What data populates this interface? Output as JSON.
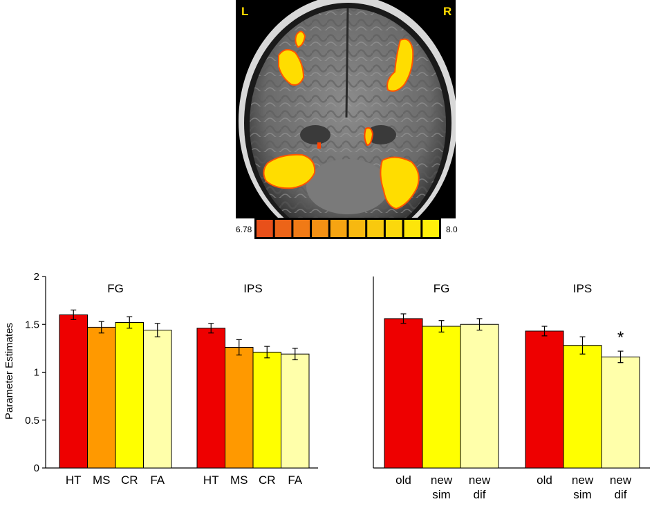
{
  "brain": {
    "left_label": "L",
    "right_label": "R",
    "colorbar": {
      "min_label": "6.78",
      "max_label": "8.0",
      "colors": [
        "#e8501a",
        "#ec6418",
        "#f07a16",
        "#f39014",
        "#f5a412",
        "#f7b810",
        "#f9c90e",
        "#fbd80c",
        "#fde50a",
        "#fff00a"
      ]
    }
  },
  "chart_data": [
    {
      "type": "bar",
      "ylabel": "Parameter Estimates",
      "ylim": [
        0,
        2
      ],
      "yticks": [
        "0",
        "0.5",
        "1",
        "1.5",
        "2"
      ],
      "groups": [
        {
          "title": "FG",
          "categories": [
            "HT",
            "MS",
            "CR",
            "FA"
          ],
          "values": [
            1.6,
            1.47,
            1.52,
            1.44
          ],
          "errors": [
            0.05,
            0.06,
            0.06,
            0.07
          ],
          "colors": [
            "#ee0000",
            "#ff9900",
            "#ffff00",
            "#ffffaa"
          ]
        },
        {
          "title": "IPS",
          "categories": [
            "HT",
            "MS",
            "CR",
            "FA"
          ],
          "values": [
            1.46,
            1.26,
            1.21,
            1.19
          ],
          "errors": [
            0.05,
            0.08,
            0.06,
            0.06
          ],
          "colors": [
            "#ee0000",
            "#ff9900",
            "#ffff00",
            "#ffffaa"
          ]
        }
      ]
    },
    {
      "type": "bar",
      "ylim": [
        0,
        2
      ],
      "groups": [
        {
          "title": "FG",
          "categories": [
            [
              "old"
            ],
            [
              "new",
              "sim"
            ],
            [
              "new",
              "dif"
            ]
          ],
          "values": [
            1.56,
            1.48,
            1.5
          ],
          "errors": [
            0.05,
            0.06,
            0.06
          ],
          "colors": [
            "#ee0000",
            "#ffff00",
            "#ffffaa"
          ],
          "annotations": [
            "",
            "",
            ""
          ]
        },
        {
          "title": "IPS",
          "categories": [
            [
              "old"
            ],
            [
              "new",
              "sim"
            ],
            [
              "new",
              "dif"
            ]
          ],
          "values": [
            1.43,
            1.28,
            1.16
          ],
          "errors": [
            0.05,
            0.09,
            0.06
          ],
          "colors": [
            "#ee0000",
            "#ffff00",
            "#ffffaa"
          ],
          "annotations": [
            "",
            "",
            "*"
          ]
        }
      ]
    }
  ]
}
